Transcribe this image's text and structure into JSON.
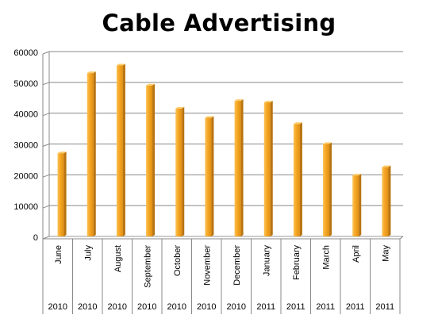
{
  "chart_data": {
    "type": "bar",
    "title": "Cable Advertising",
    "categories": [
      "June",
      "July",
      "August",
      "September",
      "October",
      "November",
      "December",
      "January",
      "February",
      "March",
      "April",
      "May"
    ],
    "years": [
      "2010",
      "2010",
      "2010",
      "2010",
      "2010",
      "2010",
      "2010",
      "2011",
      "2011",
      "2011",
      "2011",
      "2011"
    ],
    "values": [
      27000,
      53000,
      55500,
      49000,
      41500,
      38500,
      44000,
      43500,
      36500,
      30000,
      19800,
      22500
    ],
    "ylim": [
      0,
      60000
    ],
    "yticks": [
      0,
      10000,
      20000,
      30000,
      40000,
      50000,
      60000
    ],
    "grid": true,
    "legend": "none",
    "bar_color": "#F5A623",
    "bar_dark_color": "#B8740F"
  }
}
